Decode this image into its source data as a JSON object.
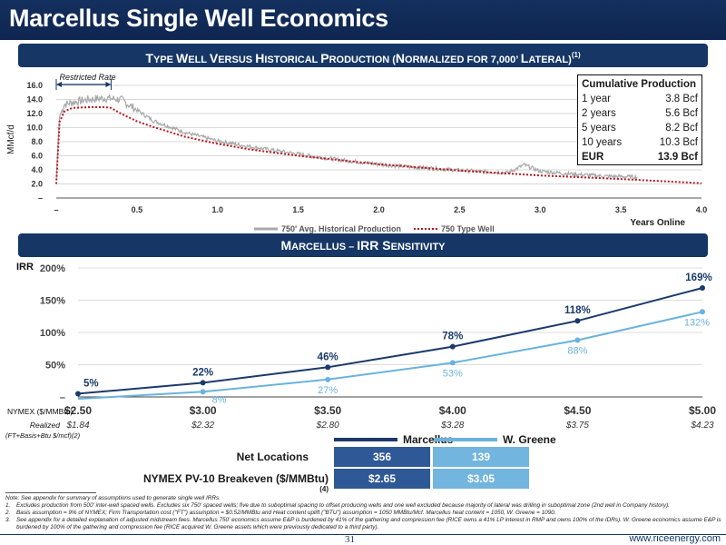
{
  "slide": {
    "title": "Marcellus Single Well Economics",
    "page_number": "31",
    "website": "www.riceenergy.com"
  },
  "colors": {
    "title_bar": "#14305e",
    "section_bar": "#163766",
    "marcellus_dark": "#1b3a6b",
    "wgreene_light": "#6ab3dc",
    "historical_gray": "#a8a8a8",
    "type_well_red": "#c0141e",
    "cell_dark": "#2f5896",
    "cell_light": "#72b5de"
  },
  "section1": {
    "title_parts": [
      "T",
      "YPE ",
      "W",
      "ELL ",
      "V",
      "ERSUS ",
      "H",
      "ISTORICAL ",
      "P",
      "RODUCTION (",
      "N",
      "ORMALIZED FOR 7,000’ ",
      "L",
      "ATERAL)"
    ],
    "footnote": "(1)"
  },
  "section2": {
    "title_parts": [
      "M",
      "ARCELLUS – ",
      "IRR S",
      "ENSITIVITY"
    ]
  },
  "cumulative_box": {
    "header": "Cumulative Production",
    "rows": [
      {
        "label": "1 year",
        "value": "3.8 Bcf"
      },
      {
        "label": "2 years",
        "value": "5.6 Bcf"
      },
      {
        "label": "5 years",
        "value": "8.2 Bcf"
      },
      {
        "label": "10 years",
        "value": "10.3 Bcf"
      },
      {
        "label": "EUR",
        "value": "13.9 Bcf"
      }
    ]
  },
  "chart_data": [
    {
      "type": "line",
      "xlabel": "Years Online",
      "ylabel": "MMcf/d",
      "xlim": [
        0,
        4.0
      ],
      "ylim": [
        0,
        16.0
      ],
      "x_tick_labels": [
        "–",
        "0.5",
        "1.0",
        "1.5",
        "2.0",
        "2.5",
        "3.0",
        "3.5",
        "4.0"
      ],
      "x_ticks": [
        0,
        0.5,
        1.0,
        1.5,
        2.0,
        2.5,
        3.0,
        3.5,
        4.0
      ],
      "y_tick_labels": [
        "–",
        "2.0",
        "4.0",
        "6.0",
        "8.0",
        "10.0",
        "12.0",
        "14.0",
        "16.0"
      ],
      "y_ticks": [
        0,
        2,
        4,
        6,
        8,
        10,
        12,
        14,
        16
      ],
      "annotation": "Restricted Rate",
      "restricted_rate_range": [
        0,
        0.34
      ],
      "series": [
        {
          "name": "750' Avg. Historical Production",
          "style": "solid-noisy",
          "x": [
            0,
            0.02,
            0.05,
            0.1,
            0.2,
            0.3,
            0.4,
            0.5,
            0.6,
            0.8,
            1.0,
            1.2,
            1.4,
            1.6,
            1.8,
            2.0,
            2.2,
            2.4,
            2.6,
            2.8,
            2.9,
            3.0,
            3.2,
            3.4,
            3.6
          ],
          "values": [
            2.5,
            11.5,
            13.3,
            13.6,
            14.0,
            14.2,
            14.0,
            12.5,
            11.0,
            9.3,
            8.1,
            7.3,
            6.6,
            5.9,
            5.3,
            4.8,
            4.4,
            4.1,
            3.8,
            3.6,
            4.7,
            3.8,
            3.4,
            3.1,
            3.0
          ]
        },
        {
          "name": "750 Type Well",
          "style": "dotted",
          "x": [
            0,
            0.02,
            0.05,
            0.1,
            0.2,
            0.3,
            0.34,
            0.4,
            0.5,
            0.6,
            0.8,
            1.0,
            1.2,
            1.5,
            2.0,
            2.5,
            3.0,
            3.5,
            4.0
          ],
          "values": [
            2.0,
            10.8,
            12.3,
            12.8,
            12.9,
            12.9,
            12.8,
            12.0,
            10.9,
            10.1,
            8.7,
            7.7,
            6.9,
            6.0,
            4.8,
            3.9,
            3.2,
            2.7,
            2.1
          ]
        }
      ]
    },
    {
      "type": "line",
      "ylabel": "IRR",
      "ylim": [
        0,
        200
      ],
      "y_tick_labels": [
        "–",
        "50%",
        "100%",
        "150%",
        "200%"
      ],
      "y_ticks": [
        0,
        50,
        100,
        150,
        200
      ],
      "x_header": "NYMEX ($/MMBtu)",
      "x_subheader": "Realized (FT+Basis+Btu $/mcf)",
      "x_subheader_footnote": "(2)",
      "categories": [
        "$2.50",
        "$3.00",
        "$3.50",
        "$4.00",
        "$4.50",
        "$5.00"
      ],
      "realized": [
        "$1.84",
        "$2.32",
        "$2.80",
        "$3.28",
        "$3.75",
        "$4.23"
      ],
      "series": [
        {
          "name": "Marcellus",
          "values": [
            5,
            22,
            46,
            78,
            118,
            169
          ],
          "labels": [
            "5%",
            "22%",
            "46%",
            "78%",
            "118%",
            "169%"
          ]
        },
        {
          "name": "W. Greene",
          "values": [
            -3,
            8,
            27,
            53,
            88,
            132
          ],
          "labels": [
            "",
            "8%",
            "27%",
            "53%",
            "88%",
            "132%"
          ]
        }
      ]
    }
  ],
  "table": {
    "legend": [
      "Marcellus",
      "W. Greene"
    ],
    "rows": [
      {
        "label": "Net Locations",
        "marcellus": "356",
        "wgreene": "139"
      },
      {
        "label": "NYMEX PV-10 Breakeven ($/MMBtu)",
        "label_sup": "(4)",
        "marcellus": "$2.65",
        "wgreene": "$3.05"
      }
    ]
  },
  "notes": {
    "intro": "Note: See appendix for summary of assumptions used to generate single well IRRs.",
    "items": [
      {
        "num": "1.",
        "text": "Excludes production from 500' inter-well spaced wells. Excludes six 750' spaced wells; five due to suboptimal spacing to offset producing wells and one well excluded because majority of lateral was drilling in suboptimal zone (2nd well in Company history)."
      },
      {
        "num": "2.",
        "text": "Basis assumption = 9% of NYMEX; Firm Transportation cost (\"FT\") assumption = $0.52/MMBtu and Heat content uplift (\"BTU\") assumption = 1050 MMBtu/Mcf. Marcellus heat content = 1050, W. Greene = 1090."
      },
      {
        "num": "3.",
        "text": "See appendix for a detailed explanation of adjusted midstream fees. Marcellus 750' economics assume E&P is burdened by 41% of the gathering and compression fee (RICE owns a 41% LP interest in RMP and owns 100% of the IDRs). W. Greene economics assume E&P is burdened by 100% of the gathering and compression fee (RICE acquired W. Greene assets which were previously dedicated to a third party)."
      }
    ]
  }
}
